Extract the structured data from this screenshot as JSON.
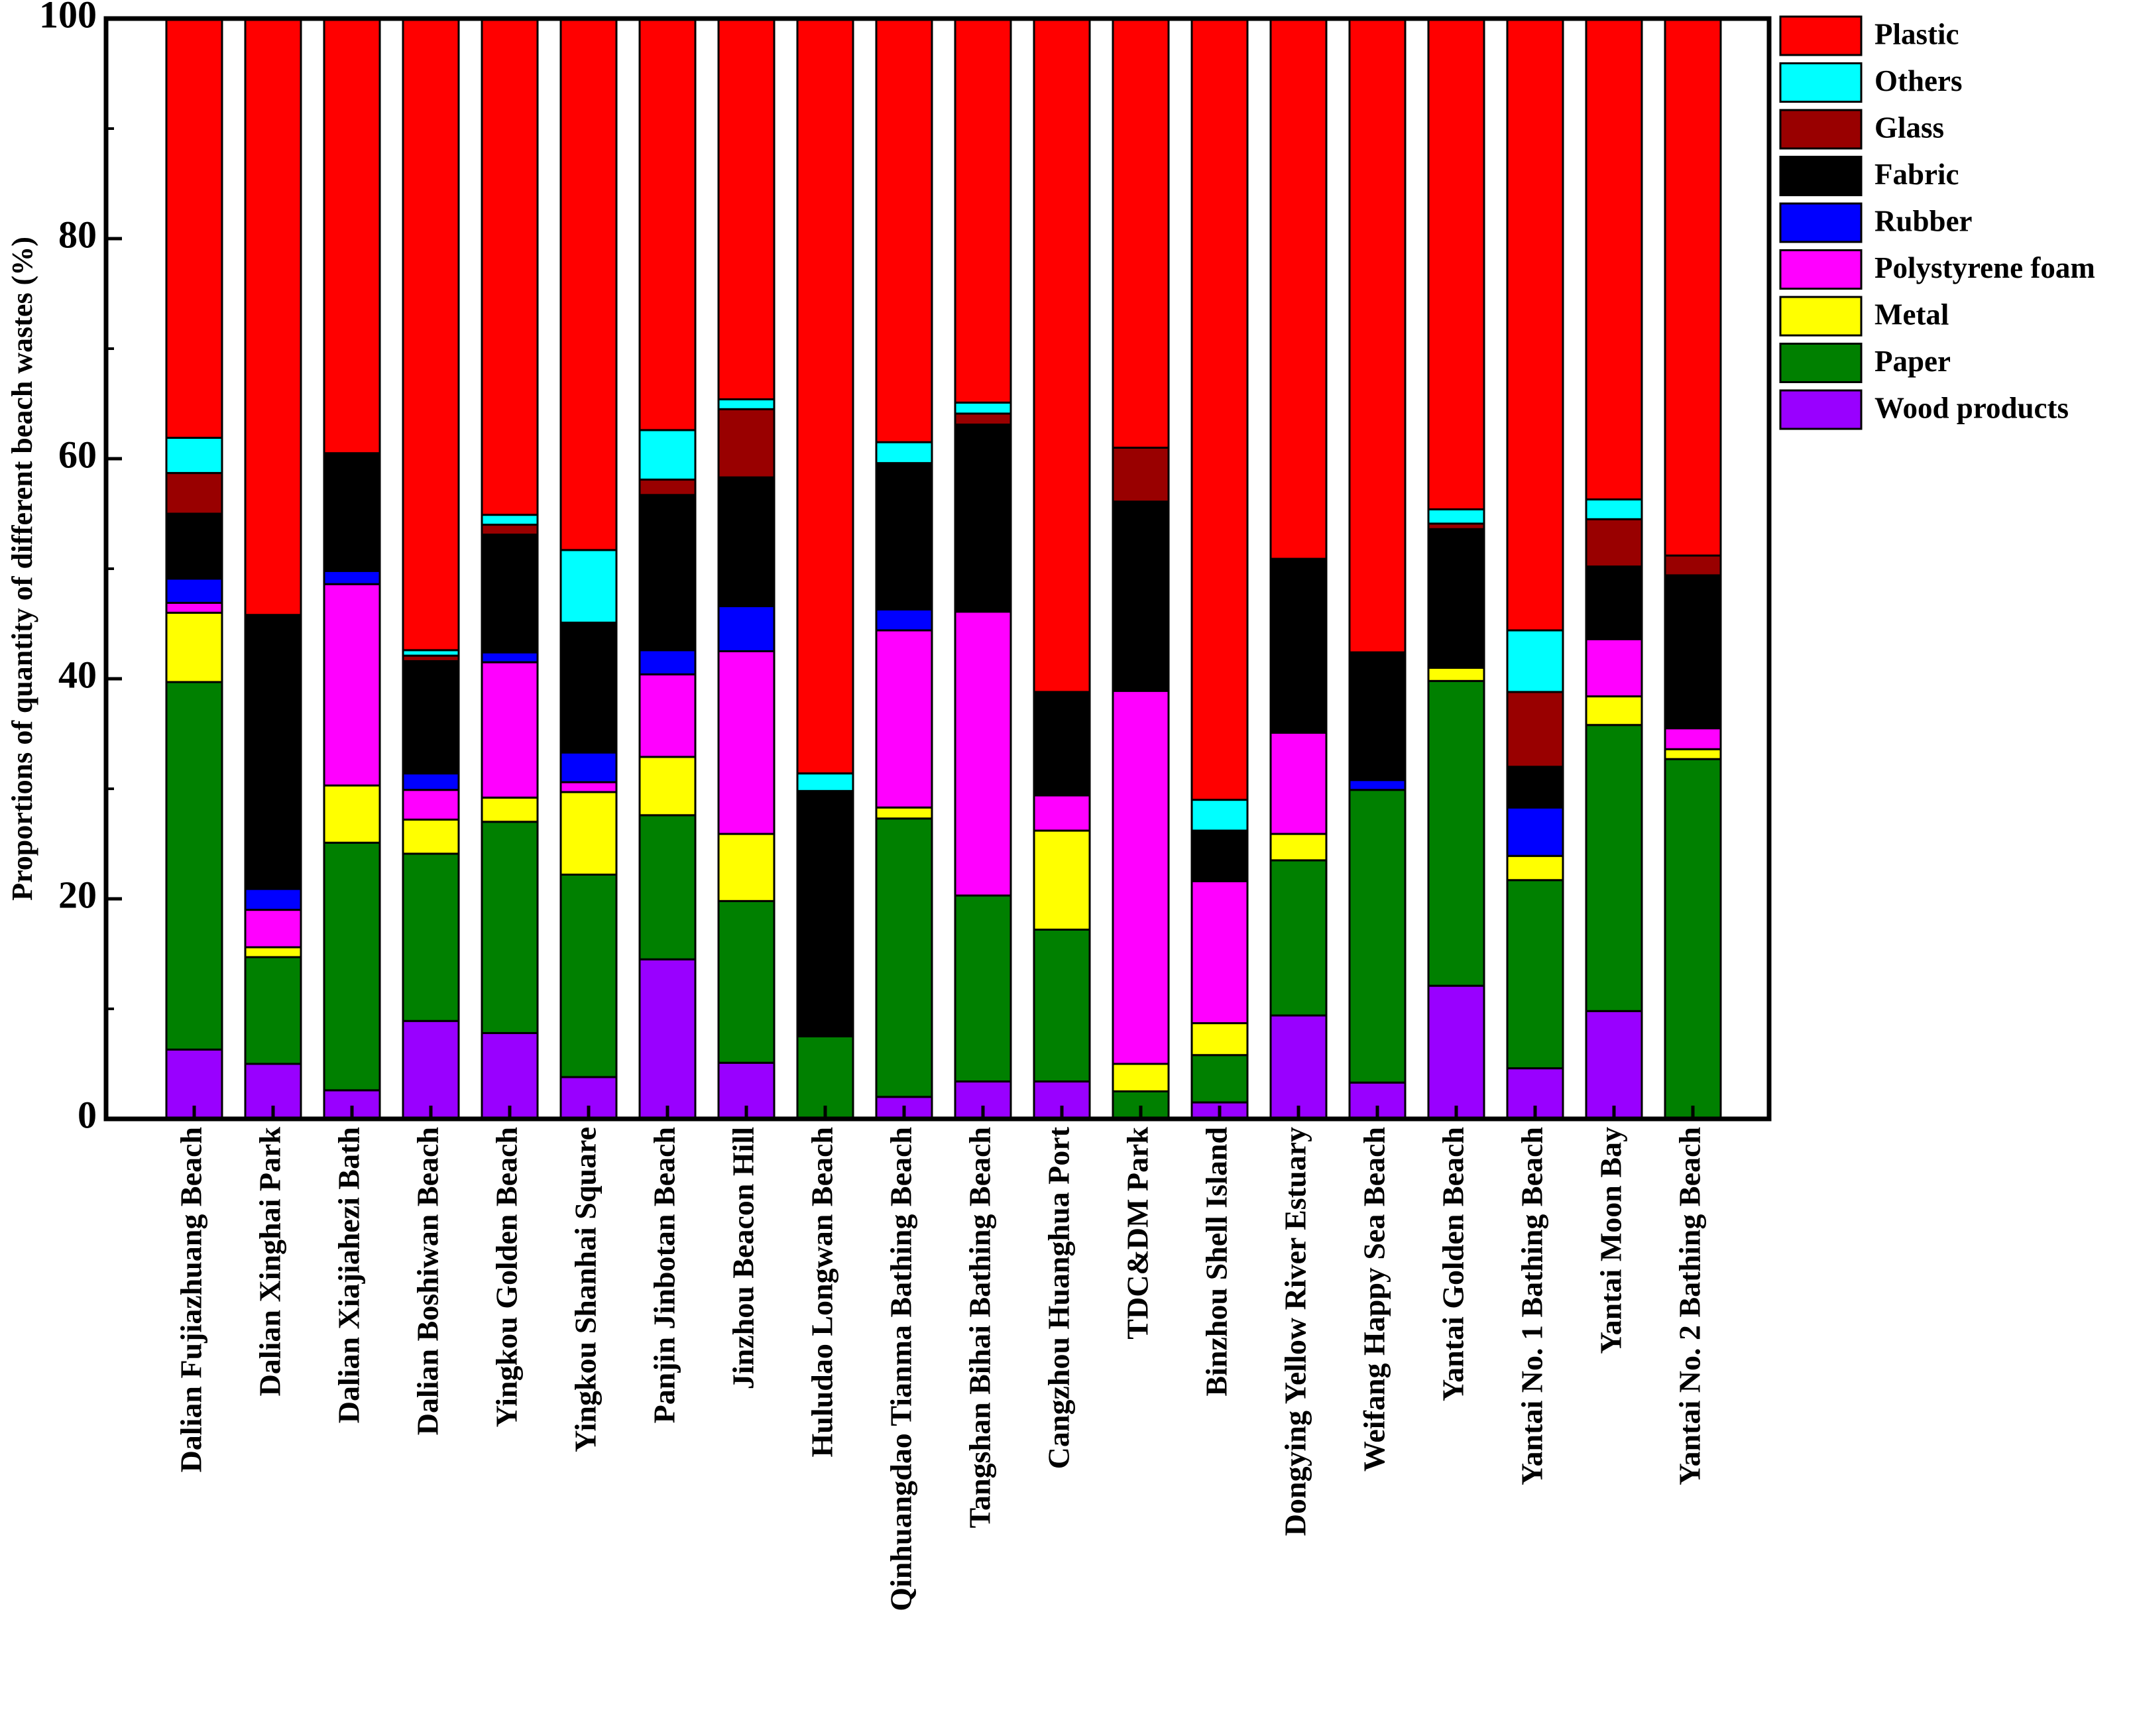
{
  "chart_data": {
    "type": "stacked-bar",
    "ylabel": "Proportions of quantity of different beach wastes (%)",
    "xlabel": "",
    "ylim": [
      0,
      100
    ],
    "yticks": [
      0,
      20,
      40,
      60,
      80,
      100
    ],
    "legend_position": "top-right outside",
    "categories": [
      "Dalian Fujiazhuang Beach",
      "Dalian Xinghai Park",
      "Dalian Xiajiahezi Bath",
      "Dalian Boshiwan Beach",
      "Yingkou Golden Beach",
      "Yingkou Shanhai Square",
      "Panjin Jinbotan Beach",
      "Jinzhou Beacon Hill",
      "Huludao Longwan Beach",
      "Qinhuangdao Tianma Bathing Beach",
      "Tangshan Bihai Bathing Beach",
      "Cangzhou Huanghua Port",
      "TDC&DM Park",
      "Binzhou Shell Island",
      "Dongying Yellow River Estuary",
      "Weifang Happy Sea Beach",
      "Yantai Golden Beach",
      "Yantai No. 1 Bathing Beach",
      "Yantai Moon Bay",
      "Yantai No. 2 Bathing Beach"
    ],
    "series": [
      {
        "name": "Wood products",
        "color": "#9900FF",
        "values": [
          6.3,
          5.0,
          2.6,
          8.9,
          7.8,
          3.8,
          14.5,
          5.1,
          0,
          2.0,
          3.4,
          3.4,
          0,
          1.5,
          9.4,
          3.3,
          12.1,
          4.6,
          9.8,
          0
        ]
      },
      {
        "name": "Paper",
        "color": "#008000",
        "values": [
          33.4,
          9.7,
          22.5,
          15.2,
          19.2,
          18.4,
          13.1,
          14.7,
          7.5,
          25.3,
          16.9,
          13.8,
          2.5,
          4.3,
          14.1,
          26.6,
          27.7,
          17.1,
          26.0,
          32.7
        ]
      },
      {
        "name": "Metal",
        "color": "#FFFF00",
        "values": [
          6.3,
          0.9,
          5.2,
          3.1,
          2.2,
          7.5,
          5.3,
          6.1,
          0,
          1.0,
          0,
          9.0,
          2.5,
          2.9,
          2.4,
          0,
          1.2,
          2.2,
          2.6,
          0.9
        ]
      },
      {
        "name": "Polystyrene foam",
        "color": "#FF00FF",
        "values": [
          0.9,
          3.4,
          18.3,
          2.7,
          12.3,
          0.9,
          7.5,
          16.6,
          0,
          16.1,
          25.8,
          3.2,
          33.9,
          12.9,
          9.2,
          0,
          0,
          0,
          5.2,
          1.9
        ]
      },
      {
        "name": "Rubber",
        "color": "#0000FF",
        "values": [
          2.2,
          1.9,
          1.2,
          1.5,
          0.9,
          2.7,
          2.2,
          4.1,
          0,
          1.9,
          0,
          0,
          0,
          0,
          0,
          0.9,
          0,
          4.4,
          0,
          0
        ]
      },
      {
        "name": "Fabric",
        "color": "#000000",
        "values": [
          5.9,
          24.9,
          10.7,
          10.2,
          10.7,
          11.8,
          14.1,
          11.7,
          22.3,
          13.3,
          17.0,
          9.4,
          17.2,
          4.6,
          15.8,
          11.6,
          12.6,
          3.7,
          6.6,
          13.9
        ]
      },
      {
        "name": "Glass",
        "color": "#990000",
        "values": [
          3.7,
          0,
          0,
          0.5,
          0.9,
          0,
          1.4,
          6.2,
          0,
          0,
          1.0,
          0,
          4.9,
          0,
          0,
          0,
          0.5,
          6.8,
          4.3,
          1.8
        ]
      },
      {
        "name": "Others",
        "color": "#00FFFF",
        "values": [
          3.2,
          0,
          0,
          0.5,
          0.9,
          6.6,
          4.5,
          0.9,
          1.6,
          1.9,
          1.0,
          0,
          0,
          2.8,
          0,
          0,
          1.3,
          5.6,
          1.8,
          0
        ]
      },
      {
        "name": "Plastic",
        "color": "#FF0000",
        "values": [
          38.1,
          54.2,
          39.5,
          57.4,
          45.1,
          48.3,
          37.4,
          34.6,
          68.6,
          38.5,
          34.9,
          61.2,
          39.0,
          71.0,
          49.1,
          57.6,
          44.6,
          55.6,
          43.7,
          48.8
        ]
      }
    ],
    "legend_order": [
      "Plastic",
      "Others",
      "Glass",
      "Fabric",
      "Rubber",
      "Polystyrene foam",
      "Metal",
      "Paper",
      "Wood products"
    ]
  }
}
